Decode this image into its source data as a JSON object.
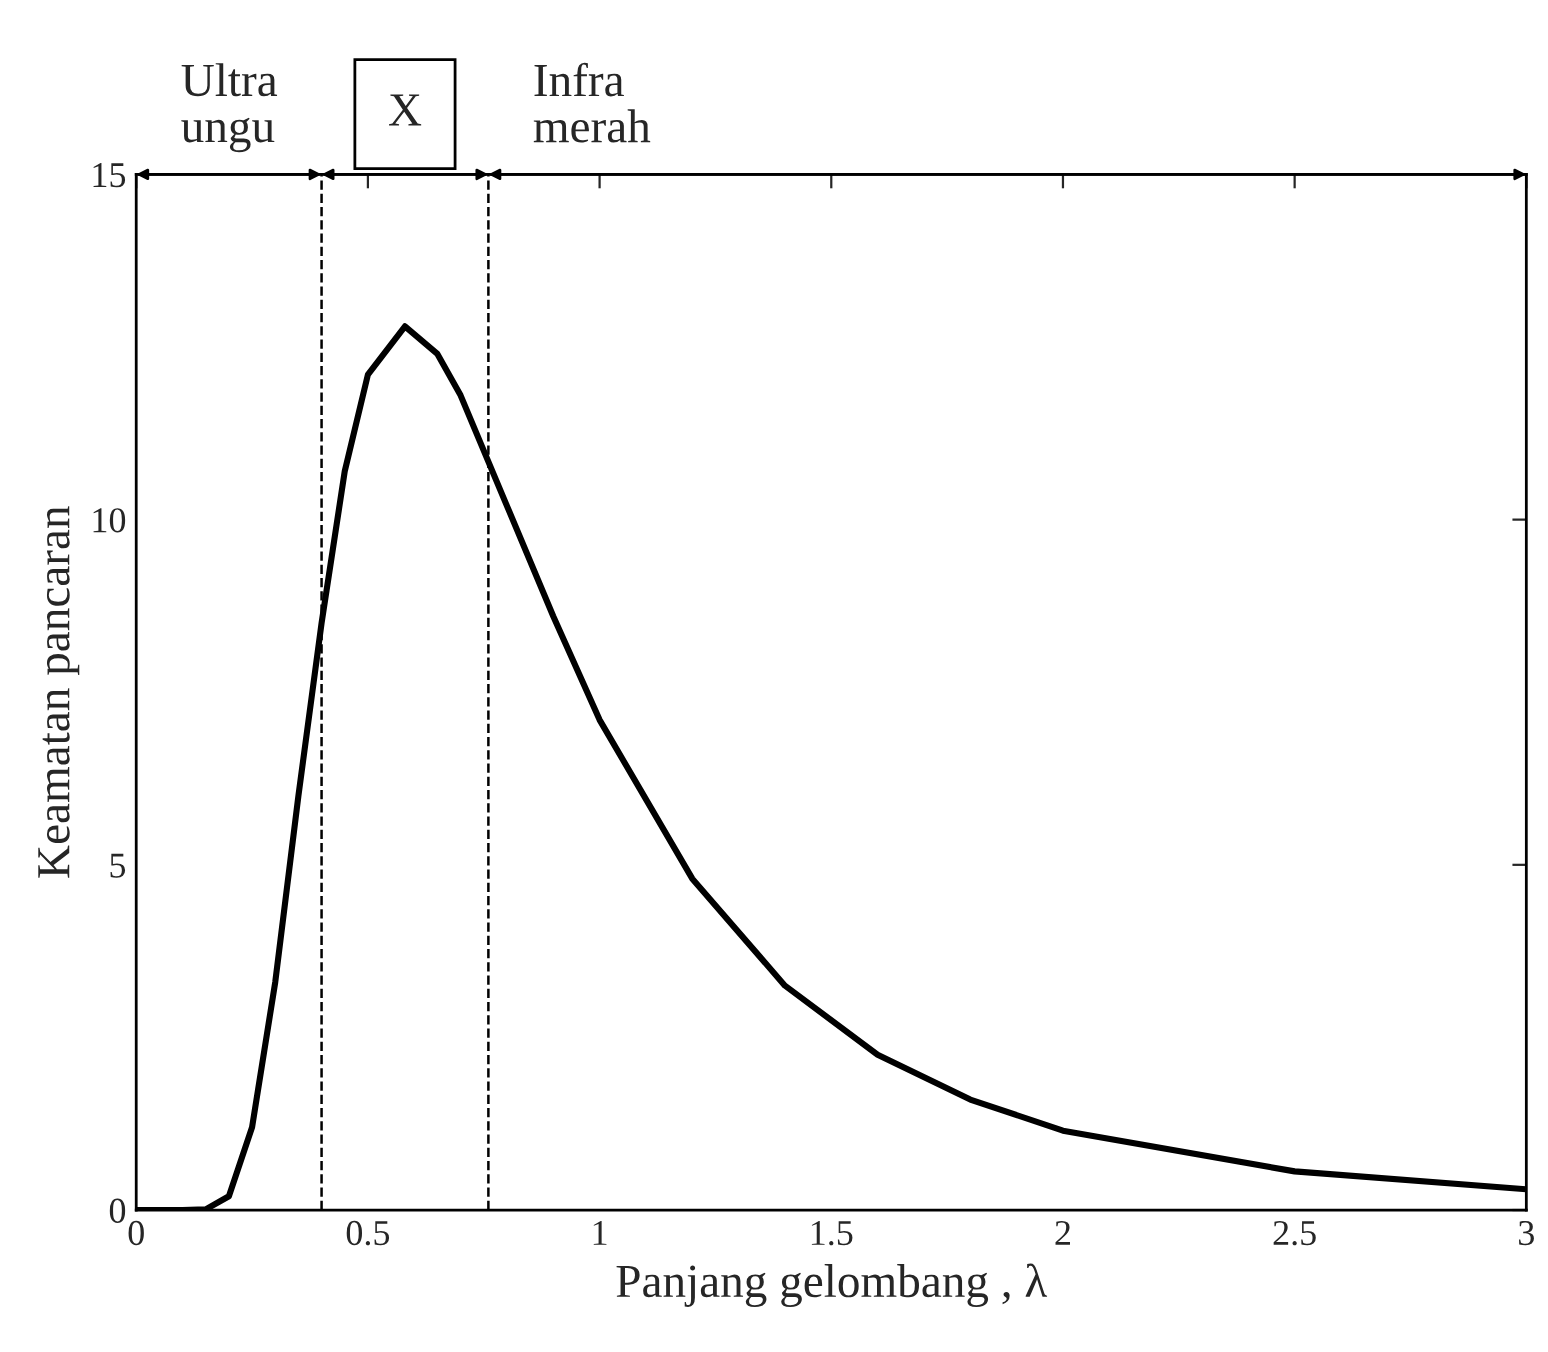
{
  "chart_data": {
    "type": "line",
    "xlabel": "Panjang gelombang , λ",
    "ylabel": "Keamatan pancaran",
    "series": [
      {
        "color": "#000000",
        "x": [
          0,
          0.1,
          0.15,
          0.2,
          0.25,
          0.3,
          0.35,
          0.4,
          0.45,
          0.5,
          0.58,
          0.65,
          0.7,
          0.8,
          0.9,
          1.0,
          1.2,
          1.4,
          1.6,
          1.8,
          2.0,
          2.5,
          3.0
        ],
        "values": [
          0,
          0,
          0.01,
          0.2,
          1.2,
          3.3,
          6.0,
          8.5,
          10.7,
          12.1,
          12.8,
          12.4,
          11.8,
          10.2,
          8.6,
          7.1,
          4.8,
          3.25,
          2.25,
          1.6,
          1.15,
          0.56,
          0.3
        ]
      }
    ],
    "xlim": [
      0,
      3
    ],
    "ylim": [
      0,
      15
    ],
    "xticks": [
      0,
      0.5,
      1,
      1.5,
      2,
      2.5,
      3
    ],
    "yticks": [
      0,
      5,
      10,
      15
    ],
    "ref_lines": [
      {
        "axis": "x",
        "value": 0.4,
        "line_style": "dashed"
      },
      {
        "axis": "x",
        "value": 0.76,
        "line_style": "dashed"
      }
    ],
    "annotations": [
      "Ultra\nungu",
      "X",
      "Infra\nmerah"
    ],
    "grid": false,
    "legend": false,
    "marker": "none",
    "line_style": "solid"
  }
}
